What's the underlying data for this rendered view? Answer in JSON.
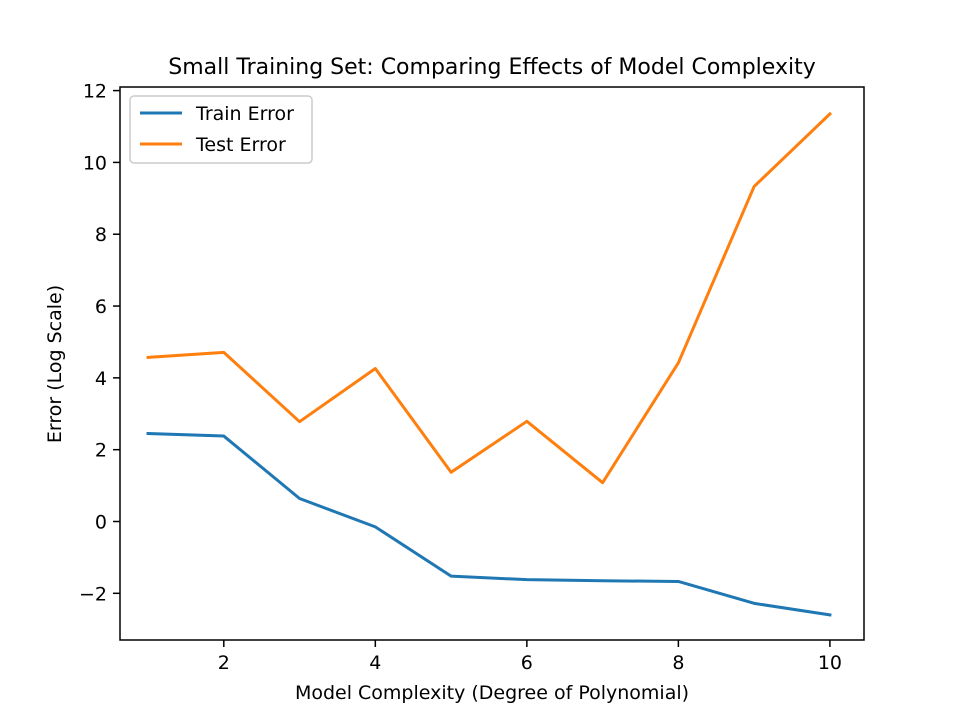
{
  "chart_data": {
    "type": "line",
    "title": "Small Training Set: Comparing Effects of Model Complexity",
    "xlabel": "Model Complexity (Degree of Polynomial)",
    "ylabel": "Error (Log Scale)",
    "xlim": [
      0.63,
      10.45
    ],
    "ylim": [
      -3.3,
      12.1
    ],
    "x": [
      1,
      2,
      3,
      4,
      5,
      6,
      7,
      8,
      9,
      10
    ],
    "xticks": [
      2,
      4,
      6,
      8,
      10
    ],
    "xtick_labels": [
      "2",
      "4",
      "6",
      "8",
      "10"
    ],
    "yticks": [
      -2,
      0,
      2,
      4,
      6,
      8,
      10,
      12
    ],
    "ytick_labels": [
      "−2",
      "0",
      "2",
      "4",
      "6",
      "8",
      "10",
      "12"
    ],
    "grid": false,
    "legend_position": "top-left",
    "series": [
      {
        "name": "Train Error",
        "color": "#1f77b4",
        "values": [
          2.45,
          2.38,
          0.64,
          -0.15,
          -1.52,
          -1.62,
          -1.65,
          -1.67,
          -2.28,
          -2.6
        ]
      },
      {
        "name": "Test Error",
        "color": "#ff7f0e",
        "values": [
          4.57,
          4.71,
          2.78,
          4.26,
          1.37,
          2.79,
          1.08,
          4.42,
          9.33,
          11.35
        ]
      }
    ]
  }
}
